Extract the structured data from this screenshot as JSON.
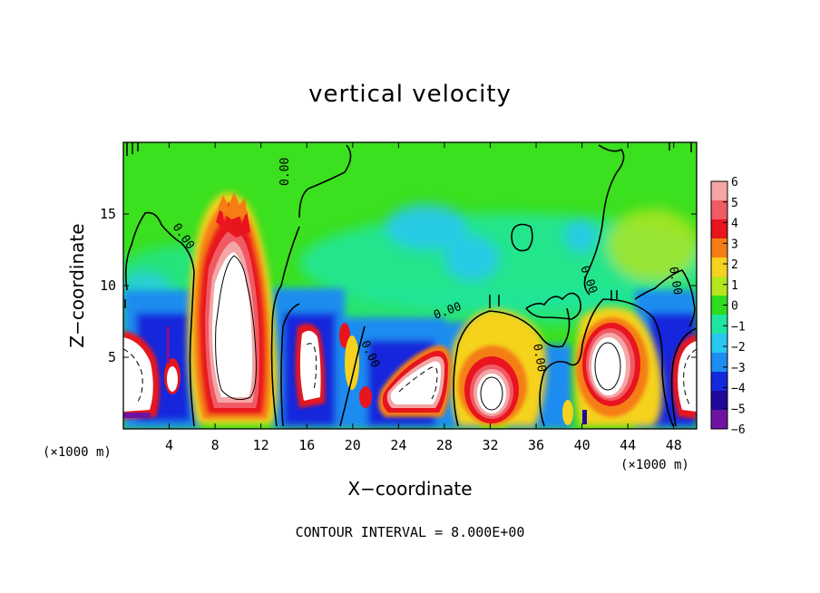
{
  "chart_data": {
    "type": "heatmap",
    "title": "vertical velocity",
    "xlabel": "X−coordinate",
    "ylabel": "Z−coordinate",
    "x_unit_left": "(×1000 m)",
    "x_unit_right": "(×1000 m)",
    "x_ticks": [
      "4",
      "8",
      "12",
      "16",
      "20",
      "24",
      "28",
      "32",
      "36",
      "40",
      "44",
      "48"
    ],
    "x_tick_values": [
      4,
      8,
      12,
      16,
      20,
      24,
      28,
      32,
      36,
      40,
      44,
      48
    ],
    "y_ticks": [
      "5",
      "10",
      "15"
    ],
    "y_tick_values": [
      5,
      10,
      15
    ],
    "xlim": [
      0,
      50
    ],
    "ylim": [
      0,
      20
    ],
    "colorbar": {
      "labels": [
        "6",
        "5",
        "4",
        "3",
        "2",
        "1",
        "0",
        "−1",
        "−2",
        "−3",
        "−4",
        "−5",
        "−6"
      ],
      "values": [
        6,
        5,
        4,
        3,
        2,
        1,
        0,
        -1,
        -2,
        -3,
        -4,
        -5,
        -6
      ],
      "colors": [
        "#f4a6a6",
        "#f05a64",
        "#e8141e",
        "#f57d14",
        "#f5d21e",
        "#b4e61e",
        "#2ddc1e",
        "#1ee6a0",
        "#28c8f0",
        "#1e8cf0",
        "#1428dc",
        "#1e0a9b",
        "#6e14a0"
      ]
    },
    "contour_labels": [
      "0.00",
      "0.00",
      "0.00",
      "0.00",
      "0.00",
      "0.00",
      "0.00"
    ],
    "features": [
      {
        "kind": "updraft",
        "x": 10,
        "z_bottom": 0.5,
        "z_top": 15.5,
        "core_max": "> 6"
      },
      {
        "kind": "updraft",
        "x": 31.5,
        "z_bottom": 0.5,
        "z_top": 6.5,
        "core_max": "> 6"
      },
      {
        "kind": "updraft",
        "x": 42.5,
        "z_bottom": 0.5,
        "z_top": 7.5,
        "core_max": "> 6"
      },
      {
        "kind": "updraft",
        "x": 25.5,
        "z_bottom": 0.5,
        "z_top": 5.5,
        "core_max": "> 6"
      },
      {
        "kind": "updraft",
        "x": 17,
        "z_bottom": 1,
        "z_top": 7,
        "core_max": "> 6"
      },
      {
        "kind": "updraft",
        "x": 0.5,
        "z_bottom": 0.5,
        "z_top": 6.5,
        "core_max": "> 6"
      },
      {
        "kind": "updraft",
        "x": 49.5,
        "z_bottom": 0.5,
        "z_top": 6.5,
        "core_max": "> 6"
      },
      {
        "kind": "downdraft",
        "x": 4.5,
        "z_bottom": 0.5,
        "z_top": 10,
        "core_min": -6
      },
      {
        "kind": "downdraft",
        "x": 14.5,
        "z_bottom": 0.5,
        "z_top": 10,
        "core_min": -6
      },
      {
        "kind": "downdraft",
        "x": 21,
        "z_bottom": 0.5,
        "z_top": 7,
        "core_min": -6
      },
      {
        "kind": "downdraft",
        "x": 34.5,
        "z_bottom": 0.5,
        "z_top": 5,
        "core_min": -5
      },
      {
        "kind": "downdraft",
        "x": 46,
        "z_bottom": 0.5,
        "z_top": 9,
        "core_min": -5
      }
    ]
  },
  "footer": {
    "contour_interval": "CONTOUR INTERVAL = 8.000E+00"
  }
}
